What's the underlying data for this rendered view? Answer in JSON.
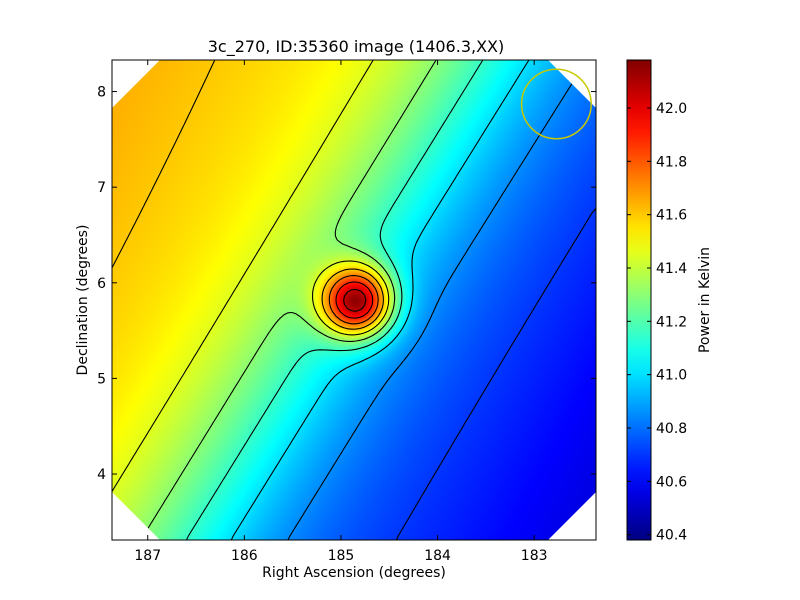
{
  "chart_data": {
    "type": "heatmap",
    "title": "3c_270, ID:35360 image (1406.3,XX)",
    "xlabel": "Right Ascension (degrees)",
    "ylabel": "Declination (degrees)",
    "xlim": [
      187.37,
      182.36
    ],
    "ylim": [
      3.31,
      8.33
    ],
    "xticks": [
      187,
      186,
      185,
      184,
      183
    ],
    "yticks": [
      4,
      5,
      6,
      7,
      8
    ],
    "colorbar": {
      "label": "Power in Kelvin",
      "range": [
        40.38,
        42.18
      ],
      "ticks": [
        "40.4",
        "40.6",
        "40.8",
        "41.0",
        "41.2",
        "41.4",
        "41.6",
        "41.8",
        "42.0"
      ],
      "colormap": "jet"
    },
    "source": {
      "ra": 184.85,
      "dec": 5.81,
      "peak": 42.15
    },
    "gradient": {
      "west_value": 41.75,
      "east_value": 40.45
    },
    "contour_levels": [
      40.55,
      40.7,
      40.85,
      41.0,
      41.15,
      41.3,
      41.45,
      41.6,
      41.75,
      41.9,
      42.05
    ],
    "beam_marker": {
      "ra": 182.77,
      "dec": 7.87,
      "radius_deg": 0.36,
      "color": "#c8c800"
    }
  }
}
